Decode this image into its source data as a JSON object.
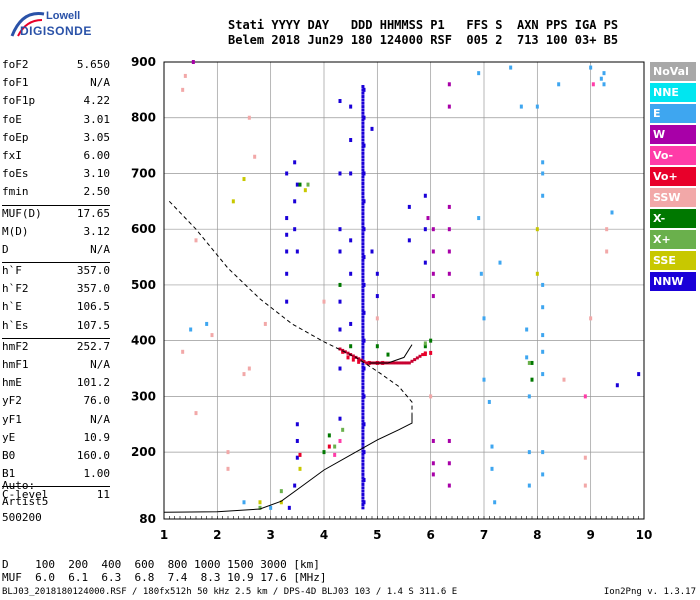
{
  "logo": {
    "line1": "Lowell",
    "line2": "DIGISONDE"
  },
  "header": {
    "line1": "Stati YYYY DAY   DDD HHMMSS P1   FFS S  AXN PPS IGA PS",
    "line2": "Belem 2018 Jun29 180 124000 RSF  005 2  713 100 03+ B5"
  },
  "params_group1": [
    {
      "k": "foF2",
      "v": "5.650"
    },
    {
      "k": "foF1",
      "v": "N/A"
    },
    {
      "k": "foF1p",
      "v": "4.22"
    },
    {
      "k": "foE",
      "v": "3.01"
    },
    {
      "k": "foEp",
      "v": "3.05"
    },
    {
      "k": "fxI",
      "v": "6.00"
    },
    {
      "k": "foEs",
      "v": "3.10"
    },
    {
      "k": "fmin",
      "v": "2.50"
    }
  ],
  "params_group2": [
    {
      "k": "MUF(D)",
      "v": "17.65"
    },
    {
      "k": "M(D)",
      "v": "3.12"
    },
    {
      "k": "D",
      "v": "N/A"
    }
  ],
  "params_group3": [
    {
      "k": "h`F",
      "v": "357.0"
    },
    {
      "k": "h`F2",
      "v": "357.0"
    },
    {
      "k": "h`E",
      "v": "106.5"
    },
    {
      "k": "h`Es",
      "v": "107.5"
    }
  ],
  "params_group4": [
    {
      "k": "hmF2",
      "v": "252.7"
    },
    {
      "k": "hmF1",
      "v": "N/A"
    },
    {
      "k": "hmE",
      "v": "101.2"
    },
    {
      "k": "yF2",
      "v": "76.0"
    },
    {
      "k": "yF1",
      "v": "N/A"
    },
    {
      "k": "yE",
      "v": "10.9"
    },
    {
      "k": "B0",
      "v": "160.0"
    },
    {
      "k": "B1",
      "v": "1.00"
    }
  ],
  "params_group5": [
    {
      "k": "C-level",
      "v": "11"
    }
  ],
  "auto": {
    "line1": "Auto:",
    "line2": "Artist5",
    "line3": "500200"
  },
  "legend": [
    {
      "label": "NoVal",
      "color": "#a8a8a8"
    },
    {
      "label": "NNE",
      "color": "#00e6f0"
    },
    {
      "label": "E",
      "color": "#3ea6f0"
    },
    {
      "label": "W",
      "color": "#a800a8"
    },
    {
      "label": "Vo-",
      "color": "#ff3ca8"
    },
    {
      "label": "Vo+",
      "color": "#e8002a"
    },
    {
      "label": "SSW",
      "color": "#f2a8a8"
    },
    {
      "label": "X-",
      "color": "#007800"
    },
    {
      "label": "X+",
      "color": "#6ab04c"
    },
    {
      "label": "SSE",
      "color": "#c8c800"
    },
    {
      "label": "NNW",
      "color": "#1a00d8"
    }
  ],
  "chart_data": {
    "type": "scatter",
    "xlim": [
      1,
      10
    ],
    "ylim": [
      80,
      900
    ],
    "x_ticks": [
      "1",
      "2",
      "3",
      "4",
      "5",
      "6",
      "7",
      "8",
      "9",
      "10"
    ],
    "y_ticks": [
      "80",
      "200",
      "300",
      "400",
      "500",
      "600",
      "700",
      "800",
      "900"
    ],
    "grid": true,
    "curves": [
      {
        "style": "solid",
        "points": [
          [
            1,
            92
          ],
          [
            2,
            93
          ],
          [
            2.8,
            98
          ],
          [
            3.2,
            112
          ],
          [
            3.6,
            140
          ],
          [
            4.0,
            168
          ],
          [
            4.5,
            195
          ],
          [
            5.0,
            222
          ],
          [
            5.4,
            240
          ],
          [
            5.65,
            252
          ],
          [
            5.65,
            270
          ]
        ]
      },
      {
        "style": "dashed",
        "points": [
          [
            1.1,
            650
          ],
          [
            1.6,
            600
          ],
          [
            2.2,
            530
          ],
          [
            2.8,
            475
          ],
          [
            3.4,
            430
          ],
          [
            4.0,
            398
          ],
          [
            4.6,
            370
          ],
          [
            5.0,
            345
          ],
          [
            5.4,
            318
          ],
          [
            5.65,
            290
          ],
          [
            5.65,
            270
          ]
        ]
      },
      {
        "style": "solid",
        "points": [
          [
            4.85,
            360
          ],
          [
            5.2,
            360
          ],
          [
            5.5,
            370
          ],
          [
            5.65,
            393
          ]
        ]
      }
    ],
    "echo_groups": [
      {
        "color": "#1a00d8",
        "points": [
          [
            3.3,
            520
          ],
          [
            3.3,
            470
          ],
          [
            3.3,
            590
          ],
          [
            3.3,
            560
          ],
          [
            3.3,
            620
          ],
          [
            3.3,
            700
          ],
          [
            3.45,
            650
          ],
          [
            3.45,
            600
          ],
          [
            3.45,
            720
          ],
          [
            3.5,
            680
          ],
          [
            3.5,
            560
          ],
          [
            3.5,
            250
          ],
          [
            3.5,
            220
          ],
          [
            3.5,
            190
          ],
          [
            3.45,
            140
          ],
          [
            3.35,
            100
          ],
          [
            4.3,
            830
          ],
          [
            4.3,
            700
          ],
          [
            4.3,
            600
          ],
          [
            4.3,
            560
          ],
          [
            4.3,
            470
          ],
          [
            4.3,
            420
          ],
          [
            4.3,
            350
          ],
          [
            4.3,
            260
          ],
          [
            4.5,
            820
          ],
          [
            4.5,
            760
          ],
          [
            4.5,
            700
          ],
          [
            4.5,
            580
          ],
          [
            4.5,
            520
          ],
          [
            4.5,
            430
          ],
          [
            4.75,
            850
          ],
          [
            4.75,
            800
          ],
          [
            4.75,
            750
          ],
          [
            4.75,
            700
          ],
          [
            4.75,
            650
          ],
          [
            4.75,
            600
          ],
          [
            4.75,
            550
          ],
          [
            4.75,
            500
          ],
          [
            4.75,
            450
          ],
          [
            4.75,
            400
          ],
          [
            4.75,
            350
          ],
          [
            4.75,
            300
          ],
          [
            4.75,
            250
          ],
          [
            4.75,
            200
          ],
          [
            4.75,
            150
          ],
          [
            4.75,
            110
          ],
          [
            4.9,
            780
          ],
          [
            4.9,
            560
          ],
          [
            5.0,
            520
          ],
          [
            5.0,
            480
          ],
          [
            5.6,
            640
          ],
          [
            5.6,
            580
          ],
          [
            5.9,
            660
          ],
          [
            5.9,
            600
          ],
          [
            5.9,
            540
          ],
          [
            9.5,
            320
          ],
          [
            9.9,
            340
          ]
        ]
      },
      {
        "color": "#a800a8",
        "points": [
          [
            5.95,
            620
          ],
          [
            6.05,
            600
          ],
          [
            6.05,
            560
          ],
          [
            6.05,
            520
          ],
          [
            6.05,
            480
          ],
          [
            6.05,
            220
          ],
          [
            6.05,
            180
          ],
          [
            6.05,
            160
          ],
          [
            6.35,
            640
          ],
          [
            6.35,
            600
          ],
          [
            6.35,
            560
          ],
          [
            6.35,
            520
          ],
          [
            6.35,
            220
          ],
          [
            6.35,
            180
          ],
          [
            6.35,
            140
          ],
          [
            6.35,
            820
          ],
          [
            6.35,
            860
          ],
          [
            1.55,
            900
          ]
        ]
      },
      {
        "color": "#e8002a",
        "points": [
          [
            4.35,
            380
          ],
          [
            4.45,
            370
          ],
          [
            4.55,
            366
          ],
          [
            4.65,
            362
          ],
          [
            4.85,
            360
          ],
          [
            5.0,
            360
          ],
          [
            5.1,
            360
          ],
          [
            5.9,
            376
          ],
          [
            6.0,
            378
          ],
          [
            4.1,
            210
          ],
          [
            3.55,
            195
          ]
        ]
      },
      {
        "color": "#3ea6f0",
        "points": [
          [
            6.9,
            620
          ],
          [
            6.95,
            520
          ],
          [
            7.0,
            440
          ],
          [
            7.0,
            330
          ],
          [
            7.1,
            290
          ],
          [
            7.15,
            210
          ],
          [
            7.15,
            170
          ],
          [
            7.2,
            110
          ],
          [
            7.3,
            540
          ],
          [
            7.7,
            820
          ],
          [
            7.8,
            420
          ],
          [
            7.8,
            370
          ],
          [
            7.85,
            300
          ],
          [
            7.85,
            200
          ],
          [
            7.85,
            140
          ],
          [
            8.0,
            820
          ],
          [
            8.1,
            700
          ],
          [
            8.1,
            720
          ],
          [
            8.1,
            660
          ],
          [
            8.1,
            460
          ],
          [
            8.1,
            500
          ],
          [
            8.1,
            410
          ],
          [
            8.1,
            380
          ],
          [
            8.1,
            340
          ],
          [
            8.1,
            200
          ],
          [
            8.1,
            160
          ],
          [
            8.4,
            860
          ],
          [
            9.0,
            890
          ],
          [
            9.2,
            870
          ],
          [
            9.25,
            880
          ],
          [
            9.25,
            860
          ],
          [
            9.4,
            630
          ],
          [
            1.5,
            420
          ],
          [
            1.8,
            430
          ],
          [
            2.5,
            110
          ],
          [
            3.0,
            100
          ],
          [
            6.9,
            880
          ],
          [
            7.5,
            890
          ]
        ]
      },
      {
        "color": "#007800",
        "points": [
          [
            4.0,
            200
          ],
          [
            4.1,
            230
          ],
          [
            4.3,
            500
          ],
          [
            4.5,
            390
          ],
          [
            5.0,
            390
          ],
          [
            5.2,
            375
          ],
          [
            5.9,
            390
          ],
          [
            6.0,
            400
          ],
          [
            7.9,
            330
          ],
          [
            7.9,
            360
          ],
          [
            3.55,
            680
          ]
        ]
      },
      {
        "color": "#6ab04c",
        "points": [
          [
            3.7,
            680
          ],
          [
            4.2,
            210
          ],
          [
            4.35,
            240
          ],
          [
            5.9,
            395
          ],
          [
            7.85,
            360
          ],
          [
            3.2,
            130
          ],
          [
            2.8,
            100
          ]
        ]
      },
      {
        "color": "#c8c800",
        "points": [
          [
            3.65,
            670
          ],
          [
            2.3,
            650
          ],
          [
            2.5,
            690
          ],
          [
            3.55,
            170
          ],
          [
            3.2,
            110
          ],
          [
            8.0,
            520
          ],
          [
            8.0,
            600
          ],
          [
            2.8,
            110
          ]
        ]
      },
      {
        "color": "#f2a8a8",
        "points": [
          [
            1.35,
            850
          ],
          [
            1.4,
            875
          ],
          [
            2.6,
            800
          ],
          [
            2.7,
            730
          ],
          [
            1.6,
            580
          ],
          [
            1.35,
            380
          ],
          [
            1.6,
            270
          ],
          [
            2.2,
            200
          ],
          [
            2.2,
            170
          ],
          [
            2.5,
            340
          ],
          [
            2.6,
            350
          ],
          [
            2.9,
            430
          ],
          [
            1.9,
            410
          ],
          [
            4.0,
            470
          ],
          [
            5.0,
            440
          ],
          [
            6.0,
            300
          ],
          [
            8.9,
            190
          ],
          [
            8.9,
            140
          ],
          [
            9.0,
            440
          ],
          [
            9.3,
            560
          ],
          [
            9.3,
            600
          ],
          [
            8.5,
            330
          ]
        ]
      },
      {
        "color": "#ff3ca8",
        "points": [
          [
            4.2,
            195
          ],
          [
            4.3,
            220
          ],
          [
            9.05,
            860
          ],
          [
            8.9,
            300
          ]
        ]
      }
    ],
    "xlabel": "",
    "ylabel": ""
  },
  "footer": {
    "line1": "D    100  200  400  600  800 1000 1500 3000 [km]",
    "line2": "MUF  6.0  6.1  6.3  6.8  7.4  8.3 10.9 17.6 [MHz]"
  },
  "bottomline": "BLJ03_2018180124000.RSF / 180fx512h 50 kHz 2.5 km / DPS-4D BLJ03 103 / 1.4 S 311.6 E",
  "version": "Ion2Png v. 1.3.17"
}
